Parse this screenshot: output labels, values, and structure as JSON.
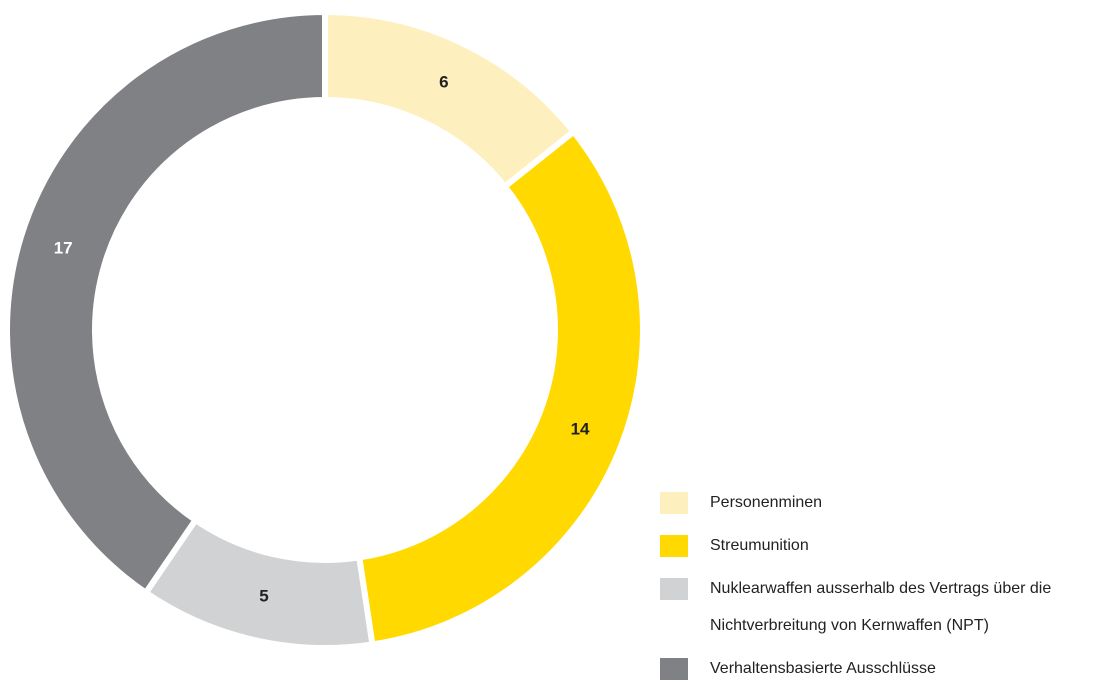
{
  "chart_data": {
    "type": "donut",
    "categories": [
      "Personenminen",
      "Streumunition",
      "Nuklearwaffen ausserhalb des Vertrags über die Nichtverbreitung von Kernwaffen (NPT)",
      "Verhaltensbasierte Ausschlüsse"
    ],
    "values": [
      6,
      14,
      5,
      17
    ],
    "colors": [
      "#fdf0be",
      "#ffd900",
      "#d1d2d4",
      "#808184"
    ],
    "legend": "bottom-right"
  }
}
